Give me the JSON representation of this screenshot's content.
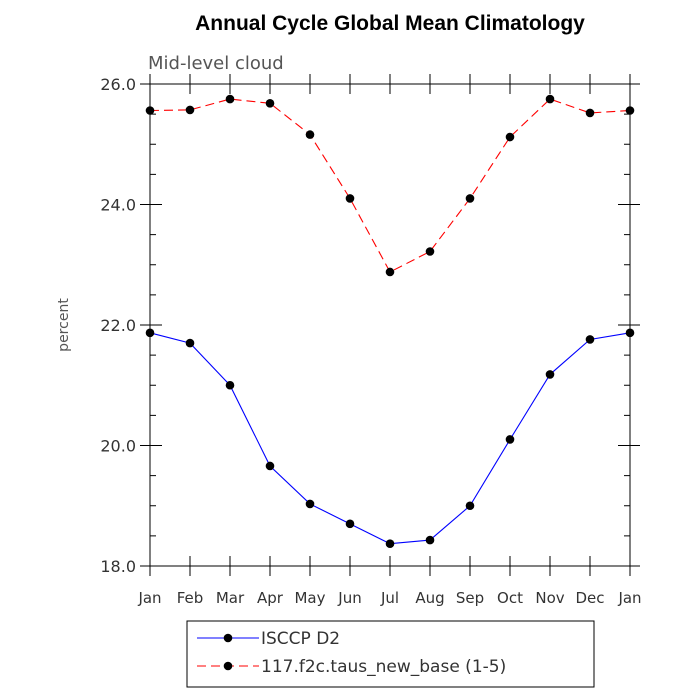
{
  "chart_data": {
    "type": "line",
    "title": "Annual Cycle Global Mean Climatology",
    "subtitle": "Mid-level cloud",
    "xlabel": "",
    "ylabel": "percent",
    "categories": [
      "Jan",
      "Feb",
      "Mar",
      "Apr",
      "May",
      "Jun",
      "Jul",
      "Aug",
      "Sep",
      "Oct",
      "Nov",
      "Dec",
      "Jan"
    ],
    "ylim": [
      18.0,
      26.0
    ],
    "yticks": [
      18.0,
      20.0,
      22.0,
      24.0,
      26.0
    ],
    "ytick_labels": [
      "18.0",
      "20.0",
      "22.0",
      "24.0",
      "26.0"
    ],
    "y_minor_step": 0.5,
    "grid": false,
    "legend_position": "bottom-center",
    "series": [
      {
        "name": "ISCCP D2",
        "color": "#0000ff",
        "line_style": "solid",
        "marker": "filled-circle",
        "values": [
          21.87,
          21.7,
          21.0,
          19.66,
          19.03,
          18.7,
          18.37,
          18.43,
          19.0,
          20.1,
          21.18,
          21.76,
          21.87
        ]
      },
      {
        "name": "117.f2c.taus_new_base (1-5)",
        "color": "#ff0000",
        "line_style": "dashed",
        "marker": "filled-circle",
        "values": [
          25.56,
          25.57,
          25.75,
          25.68,
          25.16,
          24.1,
          22.88,
          23.22,
          24.1,
          25.12,
          25.75,
          25.52,
          25.56
        ]
      }
    ]
  }
}
